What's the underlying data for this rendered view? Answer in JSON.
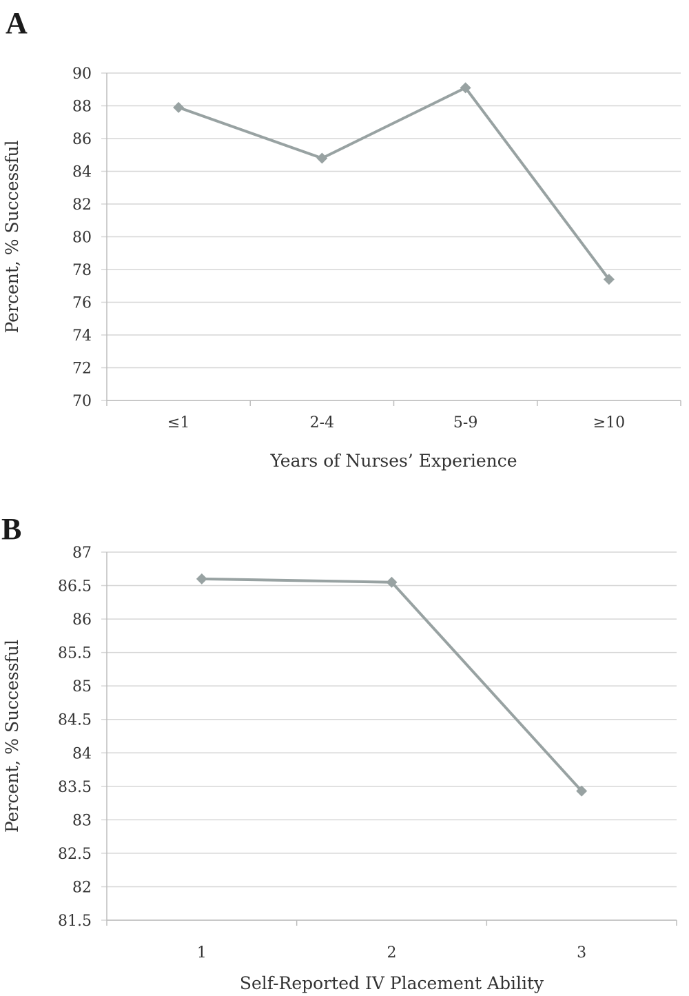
{
  "series_color": "#98a2a2",
  "chart_data": [
    {
      "panel_label": "A",
      "type": "line",
      "categories": [
        "≤1",
        "2-4",
        "5-9",
        "≥10"
      ],
      "values": [
        87.9,
        84.8,
        89.1,
        77.4
      ],
      "xlabel": "Years of Nurses’ Experience",
      "ylabel": "Percent, % Successful",
      "ylim": [
        70,
        90
      ],
      "yticks": [
        "70",
        "72",
        "74",
        "76",
        "78",
        "80",
        "82",
        "84",
        "86",
        "88",
        "90"
      ],
      "grid": true,
      "marker": "diamond"
    },
    {
      "panel_label": "B",
      "type": "line",
      "categories": [
        "1",
        "2",
        "3"
      ],
      "values": [
        86.6,
        86.55,
        83.43
      ],
      "xlabel": "Self-Reported IV Placement Ability",
      "ylabel": "Percent, % Successful",
      "ylim": [
        81.5,
        87
      ],
      "yticks": [
        "81.5",
        "82",
        "82.5",
        "83",
        "83.5",
        "84",
        "84.5",
        "85",
        "85.5",
        "86",
        "86.5",
        "87"
      ],
      "grid": true,
      "marker": "diamond"
    }
  ]
}
